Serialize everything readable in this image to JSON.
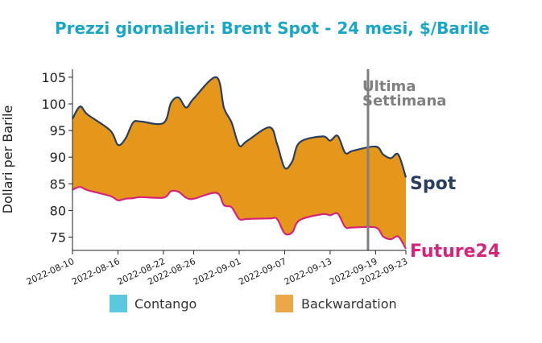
{
  "chart_data": {
    "type": "area",
    "title": "Prezzi giornalieri: Brent Spot - 24 mesi, $/Barile",
    "xlabel": "",
    "ylabel": "Dollari per Barile",
    "ylim": [
      72.5,
      106.5
    ],
    "yticks": [
      75,
      80,
      85,
      90,
      95,
      100,
      105
    ],
    "xticks": [
      "2022-08-10",
      "2022-08-16",
      "2022-08-22",
      "2022-08-26",
      "2022-09-01",
      "2022-09-07",
      "2022-09-13",
      "2022-09-19",
      "2022-09-23"
    ],
    "x": [
      "2022-08-10",
      "2022-08-11",
      "2022-08-12",
      "2022-08-15",
      "2022-08-16",
      "2022-08-17",
      "2022-08-18",
      "2022-08-19",
      "2022-08-22",
      "2022-08-23",
      "2022-08-24",
      "2022-08-25",
      "2022-08-26",
      "2022-08-29",
      "2022-08-30",
      "2022-08-31",
      "2022-09-01",
      "2022-09-02",
      "2022-09-05",
      "2022-09-06",
      "2022-09-07",
      "2022-09-08",
      "2022-09-09",
      "2022-09-12",
      "2022-09-13",
      "2022-09-14",
      "2022-09-15",
      "2022-09-16",
      "2022-09-19",
      "2022-09-20",
      "2022-09-21",
      "2022-09-22",
      "2022-09-23"
    ],
    "series": [
      {
        "name": "Spot",
        "values": [
          97.2,
          99.5,
          98.0,
          95.0,
          92.3,
          93.5,
          96.5,
          96.7,
          96.4,
          100.2,
          101.2,
          99.3,
          101.0,
          105.0,
          99.2,
          96.5,
          92.2,
          93.0,
          95.6,
          92.5,
          88.0,
          89.2,
          92.8,
          93.9,
          93.1,
          94.0,
          90.8,
          91.2,
          92.0,
          90.5,
          89.8,
          90.5,
          86.2
        ]
      },
      {
        "name": "Future24",
        "values": [
          83.9,
          84.4,
          83.8,
          82.7,
          81.9,
          82.2,
          82.3,
          82.5,
          82.4,
          83.6,
          83.5,
          82.4,
          82.2,
          83.3,
          81.0,
          80.6,
          78.4,
          78.4,
          78.5,
          78.4,
          75.7,
          75.9,
          78.2,
          79.3,
          79.1,
          79.4,
          76.9,
          76.8,
          76.8,
          75.1,
          74.6,
          75.1,
          72.8
        ]
      }
    ],
    "legend": {
      "placement": "bottom",
      "entries": [
        {
          "label": "Contango",
          "color": "#5bc8e0"
        },
        {
          "label": "Backwardation",
          "color": "#eaa84a"
        }
      ]
    },
    "annotations": {
      "last_week_line1": "Ultima",
      "last_week_line2": "Settimana",
      "last_week_date": "2022-09-18",
      "spot_label": "Spot",
      "future_label": "Future24"
    },
    "colors": {
      "spot_line": "#2a3f5f",
      "future_line": "#d6247a",
      "fill": "#e5971b",
      "title": "#1aa7c7",
      "week_line": "#808080"
    }
  }
}
